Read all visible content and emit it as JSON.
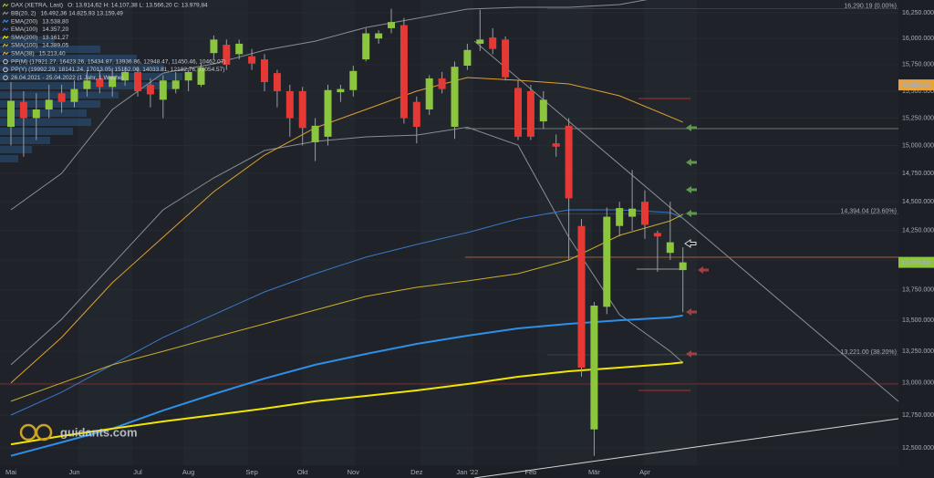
{
  "chart_data": {
    "type": "candlestick",
    "name": "DAX (XETRA, Last)",
    "ohlc_label": "O: 13.914,62  H: 14.107,38  L: 13.566,20  C: 13.979,84",
    "up_color": "#8cc63f",
    "down_color": "#e53935",
    "categories": [
      "Mai",
      null,
      null,
      null,
      null,
      "Jun",
      null,
      null,
      null,
      null,
      "Jul",
      null,
      null,
      null,
      "Aug",
      null,
      null,
      null,
      null,
      "Sep",
      null,
      null,
      null,
      "Okt",
      null,
      null,
      null,
      "Nov",
      null,
      null,
      null,
      null,
      "Dez",
      null,
      null,
      null,
      "Jan '22",
      null,
      null,
      null,
      null,
      "Feb",
      null,
      null,
      null,
      null,
      "Mär",
      null,
      null,
      null,
      "Apr",
      null,
      null,
      null
    ],
    "candles": {
      "open": [
        15170,
        15400,
        15250,
        15330,
        15480,
        15400,
        15520,
        15620,
        15540,
        15600,
        15680,
        15560,
        15420,
        15520,
        15600,
        15560,
        15860,
        15940,
        15850,
        15830,
        15800,
        15670,
        15500,
        15500,
        15030,
        15080,
        15490,
        15510,
        15800,
        16000,
        16100,
        16130,
        15400,
        15330,
        15620,
        15170,
        15740,
        15950,
        16010,
        15990,
        15530,
        15500,
        15220,
        15020,
        15180,
        14290,
        12640,
        13610,
        14290,
        14370,
        14500,
        14230,
        14060,
        13914.62
      ],
      "high": [
        15585,
        15500,
        15480,
        15560,
        15560,
        15600,
        15700,
        15700,
        15720,
        15730,
        15720,
        15620,
        15650,
        15680,
        15700,
        15760,
        16030,
        15990,
        15990,
        15900,
        15850,
        15700,
        15560,
        15540,
        15250,
        15560,
        15560,
        15740,
        16100,
        16080,
        16290,
        16200,
        15450,
        15650,
        15680,
        15780,
        15950,
        16280,
        16100,
        16020,
        15600,
        15560,
        15500,
        15100,
        15250,
        14350,
        13650,
        14450,
        14500,
        14780,
        14600,
        14250,
        14500,
        14107.38
      ],
      "low": [
        15000,
        14900,
        15050,
        15250,
        15300,
        15350,
        15450,
        15480,
        15450,
        15550,
        15450,
        15350,
        15250,
        15480,
        15500,
        15540,
        15800,
        15700,
        15800,
        15700,
        15500,
        15350,
        15080,
        15000,
        14860,
        15000,
        15400,
        15450,
        15780,
        15950,
        16050,
        15200,
        15020,
        15280,
        15480,
        15060,
        15700,
        15880,
        15850,
        15600,
        15050,
        15050,
        15150,
        14900,
        14000,
        13050,
        12440,
        13550,
        14200,
        14250,
        14180,
        13900,
        14000,
        13566.2
      ],
      "close": [
        15410,
        15250,
        15330,
        15420,
        15400,
        15520,
        15600,
        15540,
        15640,
        15680,
        15500,
        15470,
        15600,
        15600,
        15680,
        15720,
        15990,
        15750,
        15950,
        15760,
        15585,
        15500,
        15250,
        15160,
        15180,
        15510,
        15520,
        15690,
        16050,
        16050,
        16160,
        15250,
        15170,
        15620,
        15520,
        15730,
        15890,
        15990,
        15900,
        15630,
        15080,
        15080,
        15420,
        14990,
        14530,
        13120,
        13620,
        14370,
        14445,
        14440,
        14300,
        14200,
        14150,
        13979.84
      ]
    },
    "indicators": [
      {
        "name": "BB(20, 2)",
        "label": "16.492,36  14.825,93  13.159,49",
        "color": "#8a8d93",
        "width": 1,
        "x": [
          0,
          4,
          8,
          12,
          16,
          20,
          24,
          28,
          32,
          36,
          40,
          44,
          48,
          52,
          53
        ],
        "values": [
          14430,
          14751,
          15330,
          15670,
          15757,
          15888,
          15975,
          16107,
          16196,
          16286,
          16304,
          16304,
          16331,
          16421,
          16492.36
        ],
        "values_lower": [
          13142,
          13509,
          13962,
          14430,
          14710,
          14955,
          15038,
          15079,
          15095,
          15166,
          15003,
          14194,
          13546,
          13250,
          13159.49
        ]
      },
      {
        "name": "EMA(200)",
        "label": "13.538,80",
        "color": "#2f8fe6",
        "width": 2,
        "x": [
          0,
          4,
          8,
          12,
          16,
          20,
          24,
          28,
          32,
          36,
          40,
          44,
          48,
          52,
          53
        ],
        "values": [
          12440,
          12542,
          12646,
          12786,
          12912,
          13034,
          13142,
          13229,
          13309,
          13375,
          13434,
          13471,
          13500,
          13523,
          13538.8
        ]
      },
      {
        "name": "EMA(100)",
        "label": "14.357,20",
        "color": "#3b78c8",
        "width": 1,
        "x": [
          0,
          4,
          8,
          12,
          16,
          20,
          24,
          28,
          32,
          36,
          40,
          44,
          48,
          52,
          53
        ],
        "values": [
          12750,
          12927,
          13142,
          13361,
          13546,
          13733,
          13885,
          14024,
          14131,
          14233,
          14351,
          14430,
          14430,
          14406,
          14357.2
        ]
      },
      {
        "name": "SMA(200)",
        "label": "13.161,27",
        "color": "#f2e600",
        "width": 2,
        "x": [
          0,
          4,
          8,
          12,
          16,
          20,
          24,
          28,
          32,
          36,
          40,
          44,
          48,
          52,
          53
        ],
        "values": [
          12527,
          12590,
          12646,
          12701,
          12750,
          12800,
          12856,
          12898,
          12941,
          12991,
          13048,
          13091,
          13120,
          13150,
          13161.27
        ]
      },
      {
        "name": "SMA(100)",
        "label": "14.389,05",
        "color": "#c9b02a",
        "width": 1,
        "x": [
          0,
          4,
          8,
          12,
          16,
          20,
          24,
          28,
          32,
          36,
          40,
          44,
          48,
          52,
          53
        ],
        "values": [
          12856,
          12999,
          13142,
          13250,
          13361,
          13471,
          13583,
          13696,
          13771,
          13824,
          13885,
          14000,
          14209,
          14334,
          14389.05
        ]
      },
      {
        "name": "SMA(38)",
        "label": "15.213,40",
        "color": "#e0a030",
        "width": 1,
        "x": [
          0,
          4,
          8,
          12,
          16,
          20,
          24,
          28,
          32,
          36,
          40,
          44,
          48,
          52,
          53
        ],
        "values": [
          12999,
          13361,
          13809,
          14194,
          14589,
          14914,
          15161,
          15330,
          15500,
          15628,
          15602,
          15568,
          15457,
          15262,
          15213.4
        ]
      }
    ],
    "info": [
      "PP(M)  (17921.27, 16423.26, 15434.87, 13936.86, 12948.47, 11450.46, 10462.07)",
      "PP(Y)  (19992.29, 18141.24, 17013.05, 15162.00, 14033.81, 12182.76, 11054.57)",
      "26.04.2021 - 25.04.2022  (1 Jahr, 1 Woche)"
    ],
    "ylim": [
      12370,
      16376
    ],
    "log_scale": true,
    "grid": true,
    "yticks": [
      {
        "value": 16250,
        "label": "16,250.000"
      },
      {
        "value": 16000,
        "label": "16,000.000"
      },
      {
        "value": 15750,
        "label": "15,750.000"
      },
      {
        "value": 15500,
        "label": "15,500.000"
      },
      {
        "value": 15250,
        "label": "15,250.000"
      },
      {
        "value": 15000,
        "label": "15,000.000"
      },
      {
        "value": 14750,
        "label": "14,750.000"
      },
      {
        "value": 14500,
        "label": "14,500.000"
      },
      {
        "value": 14250,
        "label": "14,250.000"
      },
      {
        "value": 14000,
        "label": "14,000.000"
      },
      {
        "value": 13750,
        "label": "13,750.000"
      },
      {
        "value": 13500,
        "label": "13,500.000"
      },
      {
        "value": 13250,
        "label": "13,250.000"
      },
      {
        "value": 13000,
        "label": "13,000.000"
      },
      {
        "value": 12750,
        "label": "12,750.000"
      },
      {
        "value": 12500,
        "label": "12,500.000"
      }
    ],
    "annotations": [
      {
        "value": 16290.19,
        "label": "16,290.19 (0.00%)"
      },
      {
        "value": 14394.04,
        "label": "14,394.04 (23.60%)"
      },
      {
        "value": 13221.0,
        "label": "13,221.00 (38.20%)"
      }
    ],
    "price_markers": [
      {
        "value": 15558.44,
        "label": "15,558.44",
        "color": "#e8a33a"
      },
      {
        "value": 13979.84,
        "label": "13,979.84",
        "color": "#8cc63f"
      }
    ],
    "watermark": "guidants.com"
  }
}
